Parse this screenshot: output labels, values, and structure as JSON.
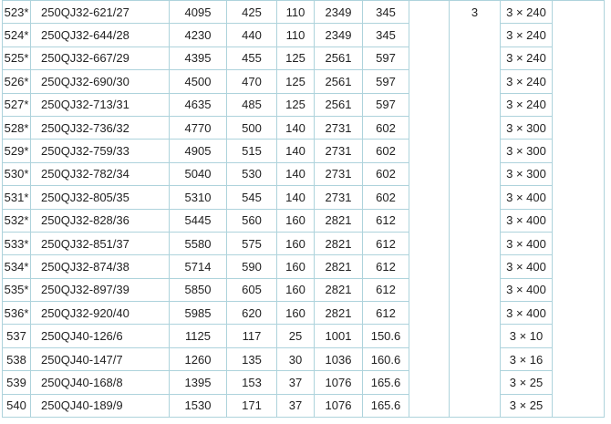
{
  "colors": {
    "grid_line": "#aed3dc",
    "text": "#222222",
    "background": "#ffffff"
  },
  "table": {
    "description": "pump-specification-table-fragment",
    "merged": {
      "cable_cores_value": "3"
    },
    "columns": [
      "row-no",
      "model",
      "flow",
      "head",
      "power",
      "value6",
      "value7",
      "gap-left",
      "cable-cores",
      "cable-spec",
      "gap-right"
    ],
    "rows": [
      {
        "no": "523*",
        "model": "250QJ32-621/27",
        "c3": "4095",
        "c4": "425",
        "c5": "110",
        "c6": "2349",
        "c7": "345",
        "cable": "3 × 240"
      },
      {
        "no": "524*",
        "model": "250QJ32-644/28",
        "c3": "4230",
        "c4": "440",
        "c5": "110",
        "c6": "2349",
        "c7": "345",
        "cable": "3 × 240"
      },
      {
        "no": "525*",
        "model": "250QJ32-667/29",
        "c3": "4395",
        "c4": "455",
        "c5": "125",
        "c6": "2561",
        "c7": "597",
        "cable": "3 × 240"
      },
      {
        "no": "526*",
        "model": "250QJ32-690/30",
        "c3": "4500",
        "c4": "470",
        "c5": "125",
        "c6": "2561",
        "c7": "597",
        "cable": "3 × 240"
      },
      {
        "no": "527*",
        "model": "250QJ32-713/31",
        "c3": "4635",
        "c4": "485",
        "c5": "125",
        "c6": "2561",
        "c7": "597",
        "cable": "3 × 240"
      },
      {
        "no": "528*",
        "model": "250QJ32-736/32",
        "c3": "4770",
        "c4": "500",
        "c5": "140",
        "c6": "2731",
        "c7": "602",
        "cable": "3 × 300"
      },
      {
        "no": "529*",
        "model": "250QJ32-759/33",
        "c3": "4905",
        "c4": "515",
        "c5": "140",
        "c6": "2731",
        "c7": "602",
        "cable": "3 × 300"
      },
      {
        "no": "530*",
        "model": "250QJ32-782/34",
        "c3": "5040",
        "c4": "530",
        "c5": "140",
        "c6": "2731",
        "c7": "602",
        "cable": "3 × 300"
      },
      {
        "no": "531*",
        "model": "250QJ32-805/35",
        "c3": "5310",
        "c4": "545",
        "c5": "140",
        "c6": "2731",
        "c7": "602",
        "cable": "3 × 400"
      },
      {
        "no": "532*",
        "model": "250QJ32-828/36",
        "c3": "5445",
        "c4": "560",
        "c5": "160",
        "c6": "2821",
        "c7": "612",
        "cable": "3 × 400"
      },
      {
        "no": "533*",
        "model": "250QJ32-851/37",
        "c3": "5580",
        "c4": "575",
        "c5": "160",
        "c6": "2821",
        "c7": "612",
        "cable": "3 × 400"
      },
      {
        "no": "534*",
        "model": "250QJ32-874/38",
        "c3": "5714",
        "c4": "590",
        "c5": "160",
        "c6": "2821",
        "c7": "612",
        "cable": "3 × 400"
      },
      {
        "no": "535*",
        "model": "250QJ32-897/39",
        "c3": "5850",
        "c4": "605",
        "c5": "160",
        "c6": "2821",
        "c7": "612",
        "cable": "3 × 400"
      },
      {
        "no": "536*",
        "model": "250QJ32-920/40",
        "c3": "5985",
        "c4": "620",
        "c5": "160",
        "c6": "2821",
        "c7": "612",
        "cable": "3 × 400"
      },
      {
        "no": "537",
        "model": "250QJ40-126/6",
        "c3": "1125",
        "c4": "117",
        "c5": "25",
        "c6": "1001",
        "c7": "150.6",
        "cable": "3 × 10"
      },
      {
        "no": "538",
        "model": "250QJ40-147/7",
        "c3": "1260",
        "c4": "135",
        "c5": "30",
        "c6": "1036",
        "c7": "160.6",
        "cable": "3 × 16"
      },
      {
        "no": "539",
        "model": "250QJ40-168/8",
        "c3": "1395",
        "c4": "153",
        "c5": "37",
        "c6": "1076",
        "c7": "165.6",
        "cable": "3 × 25"
      },
      {
        "no": "540",
        "model": "250QJ40-189/9",
        "c3": "1530",
        "c4": "171",
        "c5": "37",
        "c6": "1076",
        "c7": "165.6",
        "cable": "3 × 25"
      }
    ]
  }
}
